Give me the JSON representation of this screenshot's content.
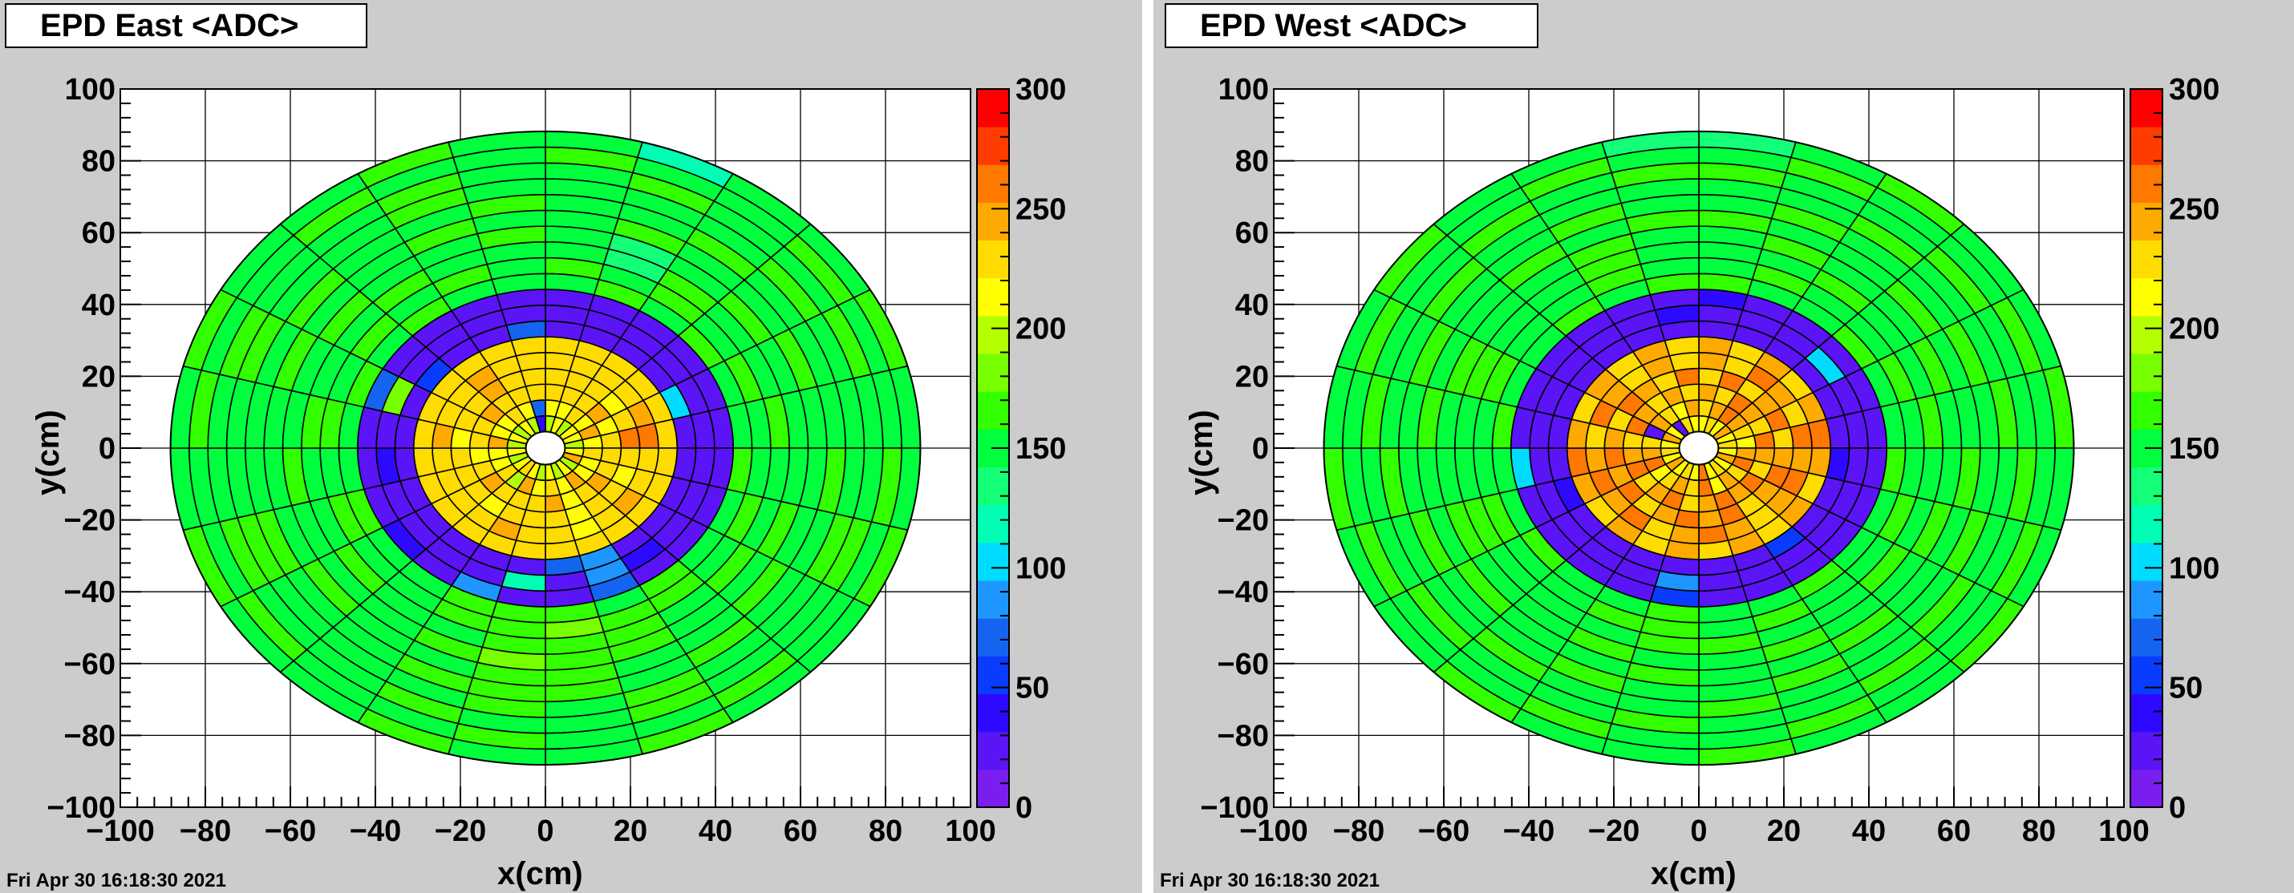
{
  "timestamp": "Fri Apr 30 16:18:30 2021",
  "colors": {
    "palette": [
      "#7a1ef0",
      "#5a14f5",
      "#2d0aff",
      "#0a3cff",
      "#1464f0",
      "#1e96ff",
      "#00dcff",
      "#00ffb4",
      "#14ff78",
      "#00ff3c",
      "#32ff00",
      "#78ff00",
      "#b4ff00",
      "#ffff00",
      "#ffdc00",
      "#ffaa00",
      "#ff7800",
      "#ff3c00",
      "#ff0000"
    ]
  },
  "chart_data": [
    {
      "type": "heatmap",
      "title": "EPD East <ADC>",
      "xlabel": "x(cm)",
      "ylabel": "y(cm)",
      "xlim": [
        -100,
        100
      ],
      "ylim": [
        -100,
        100
      ],
      "x_ticks": [
        "−100",
        "−80",
        "−60",
        "−40",
        "−20",
        "0",
        "20",
        "40",
        "60",
        "80",
        "100"
      ],
      "y_ticks": [
        "100",
        "80",
        "60",
        "40",
        "20",
        "0",
        "−20",
        "−40",
        "−60",
        "−80",
        "−100"
      ],
      "zlim": [
        0,
        300
      ],
      "z_ticks": [
        "300",
        "250",
        "200",
        "150",
        "100",
        "50",
        "0"
      ],
      "grid": true,
      "ring_edges_cm": [
        4.6,
        9.0,
        13.4,
        17.8,
        22.2,
        26.6,
        31.0,
        35.4,
        39.8,
        44.2,
        48.6,
        53.0,
        57.4,
        61.8,
        66.2,
        70.6,
        75.0,
        79.4,
        83.8,
        88.2
      ],
      "sectors": 24,
      "sector_note": "sector 0 starts at +y axis going clockwise; 24 sectors of 15 degrees",
      "ring_values": [
        [
          200,
          215,
          200,
          215,
          215,
          200,
          215,
          240,
          200,
          215,
          200,
          215,
          200,
          215,
          230,
          215,
          200,
          215,
          200,
          215,
          200,
          215,
          200,
          40
        ],
        [
          215,
          215,
          225,
          215,
          240,
          215,
          225,
          215,
          215,
          240,
          215,
          225,
          215,
          240,
          200,
          230,
          215,
          215,
          240,
          215,
          215,
          225,
          215,
          70
        ],
        [
          225,
          230,
          225,
          240,
          215,
          225,
          230,
          225,
          240,
          225,
          215,
          240,
          225,
          230,
          225,
          240,
          225,
          215,
          230,
          225,
          240,
          225,
          230,
          225
        ],
        [
          225,
          225,
          230,
          215,
          225,
          255,
          225,
          215,
          230,
          225,
          215,
          225,
          230,
          225,
          215,
          225,
          230,
          225,
          215,
          225,
          230,
          245,
          225,
          225
        ],
        [
          230,
          225,
          230,
          225,
          240,
          255,
          230,
          225,
          240,
          225,
          220,
          230,
          230,
          240,
          225,
          230,
          225,
          230,
          240,
          225,
          230,
          250,
          225,
          230
        ],
        [
          230,
          225,
          230,
          225,
          230,
          230,
          225,
          230,
          230,
          225,
          230,
          230,
          225,
          230,
          230,
          225,
          230,
          230,
          225,
          230,
          230,
          225,
          230,
          230
        ],
        [
          20,
          30,
          25,
          20,
          95,
          25,
          20,
          30,
          25,
          20,
          90,
          70,
          20,
          25,
          30,
          20,
          25,
          30,
          20,
          25,
          60,
          20,
          30,
          70
        ],
        [
          20,
          25,
          30,
          20,
          20,
          25,
          20,
          30,
          25,
          40,
          80,
          20,
          115,
          25,
          20,
          30,
          30,
          40,
          20,
          180,
          20,
          25,
          30,
          20
        ],
        [
          20,
          30,
          20,
          25,
          20,
          25,
          30,
          20,
          25,
          30,
          70,
          20,
          20,
          80,
          20,
          40,
          30,
          20,
          25,
          70,
          20,
          20,
          25,
          20
        ],
        [
          150,
          160,
          155,
          160,
          150,
          155,
          160,
          150,
          155,
          160,
          150,
          165,
          170,
          160,
          155,
          150,
          160,
          155,
          150,
          160,
          155,
          160,
          150,
          155
        ],
        [
          160,
          150,
          165,
          155,
          160,
          150,
          155,
          160,
          150,
          165,
          160,
          175,
          165,
          160,
          150,
          155,
          160,
          150,
          165,
          155,
          160,
          150,
          165,
          155
        ],
        [
          155,
          140,
          160,
          155,
          150,
          160,
          155,
          150,
          160,
          155,
          165,
          170,
          170,
          155,
          150,
          160,
          155,
          150,
          160,
          155,
          150,
          160,
          155,
          150
        ],
        [
          155,
          135,
          150,
          160,
          155,
          150,
          155,
          160,
          150,
          155,
          160,
          170,
          175,
          160,
          155,
          150,
          155,
          160,
          150,
          155,
          160,
          150,
          155,
          160
        ],
        [
          150,
          160,
          155,
          150,
          160,
          155,
          150,
          155,
          160,
          150,
          155,
          165,
          170,
          155,
          150,
          160,
          155,
          150,
          155,
          160,
          150,
          155,
          160,
          155
        ],
        [
          155,
          150,
          160,
          155,
          150,
          155,
          160,
          150,
          155,
          160,
          150,
          160,
          165,
          160,
          155,
          150,
          160,
          155,
          150,
          155,
          160,
          150,
          155,
          160
        ],
        [
          150,
          155,
          150,
          160,
          155,
          150,
          155,
          160,
          150,
          155,
          160,
          155,
          160,
          155,
          150,
          155,
          160,
          150,
          155,
          160,
          150,
          155,
          160,
          150
        ],
        [
          155,
          160,
          150,
          155,
          160,
          150,
          155,
          160,
          150,
          155,
          160,
          150,
          155,
          160,
          150,
          155,
          160,
          150,
          155,
          160,
          150,
          155,
          160,
          150
        ],
        [
          160,
          150,
          155,
          160,
          150,
          155,
          160,
          150,
          155,
          160,
          150,
          155,
          160,
          150,
          155,
          160,
          150,
          155,
          160,
          150,
          155,
          160,
          150,
          155
        ],
        [
          150,
          125,
          155,
          150,
          160,
          155,
          150,
          160,
          155,
          150,
          160,
          155,
          150,
          160,
          155,
          150,
          160,
          155,
          150,
          160,
          155,
          150,
          160,
          150
        ]
      ]
    },
    {
      "type": "heatmap",
      "title": "EPD West <ADC>",
      "xlabel": "x(cm)",
      "ylabel": "y(cm)",
      "xlim": [
        -100,
        100
      ],
      "ylim": [
        -100,
        100
      ],
      "x_ticks": [
        "−100",
        "−80",
        "−60",
        "−40",
        "−20",
        "0",
        "20",
        "40",
        "60",
        "80",
        "100"
      ],
      "y_ticks": [
        "100",
        "80",
        "60",
        "40",
        "20",
        "0",
        "−20",
        "−40",
        "−60",
        "−80",
        "−100"
      ],
      "zlim": [
        0,
        300
      ],
      "z_ticks": [
        "300",
        "250",
        "200",
        "150",
        "100",
        "50",
        "0"
      ],
      "grid": true,
      "ring_edges_cm": [
        4.6,
        9.0,
        13.4,
        17.8,
        22.2,
        26.6,
        31.0,
        35.4,
        39.8,
        44.2,
        48.6,
        53.0,
        57.4,
        61.8,
        66.2,
        70.6,
        75.0,
        79.4,
        83.8,
        88.2
      ],
      "sectors": 24,
      "sector_note": "sector 0 starts at +y axis going clockwise; 24 sectors of 15 degrees",
      "ring_values": [
        [
          215,
          230,
          215,
          240,
          215,
          230,
          215,
          240,
          215,
          230,
          215,
          255,
          215,
          230,
          215,
          240,
          215,
          230,
          215,
          240,
          215,
          20,
          230,
          215
        ],
        [
          230,
          240,
          255,
          240,
          230,
          215,
          240,
          255,
          230,
          240,
          215,
          255,
          230,
          240,
          230,
          215,
          255,
          240,
          230,
          20,
          240,
          230,
          215,
          240
        ],
        [
          240,
          230,
          255,
          240,
          230,
          255,
          240,
          230,
          255,
          240,
          255,
          240,
          230,
          255,
          240,
          230,
          255,
          240,
          230,
          255,
          240,
          230,
          240,
          230
        ],
        [
          230,
          255,
          230,
          240,
          255,
          230,
          240,
          255,
          240,
          230,
          255,
          240,
          255,
          240,
          230,
          255,
          240,
          255,
          240,
          230,
          255,
          240,
          230,
          255
        ],
        [
          240,
          230,
          255,
          240,
          230,
          255,
          240,
          255,
          240,
          230,
          240,
          255,
          240,
          230,
          255,
          240,
          255,
          240,
          230,
          255,
          240,
          230,
          240,
          230
        ],
        [
          240,
          230,
          240,
          230,
          240,
          255,
          240,
          230,
          240,
          230,
          240,
          230,
          240,
          230,
          240,
          230,
          240,
          255,
          240,
          230,
          240,
          230,
          240,
          230
        ],
        [
          20,
          20,
          25,
          20,
          30,
          20,
          40,
          20,
          30,
          50,
          20,
          25,
          20,
          30,
          20,
          25,
          40,
          20,
          30,
          20,
          25,
          20,
          30,
          20
        ],
        [
          30,
          20,
          25,
          95,
          20,
          30,
          20,
          25,
          30,
          20,
          25,
          20,
          80,
          20,
          30,
          25,
          20,
          30,
          20,
          25,
          20,
          30,
          20,
          40
        ],
        [
          40,
          20,
          25,
          20,
          30,
          20,
          25,
          30,
          20,
          25,
          30,
          20,
          60,
          20,
          25,
          30,
          20,
          100,
          20,
          25,
          30,
          20,
          25,
          20
        ],
        [
          160,
          150,
          155,
          160,
          150,
          155,
          160,
          150,
          155,
          160,
          150,
          155,
          160,
          150,
          155,
          160,
          150,
          155,
          160,
          150,
          155,
          160,
          150,
          160
        ],
        [
          155,
          160,
          150,
          155,
          160,
          150,
          155,
          160,
          150,
          155,
          160,
          150,
          165,
          160,
          150,
          155,
          160,
          150,
          155,
          160,
          150,
          155,
          160,
          155
        ],
        [
          150,
          155,
          160,
          150,
          155,
          160,
          150,
          155,
          160,
          150,
          155,
          165,
          160,
          155,
          150,
          155,
          160,
          150,
          155,
          160,
          150,
          155,
          160,
          150
        ],
        [
          155,
          160,
          150,
          155,
          160,
          150,
          155,
          160,
          150,
          155,
          160,
          150,
          155,
          160,
          150,
          155,
          160,
          150,
          155,
          160,
          150,
          155,
          160,
          155
        ],
        [
          160,
          150,
          155,
          160,
          150,
          155,
          160,
          150,
          155,
          160,
          150,
          155,
          160,
          150,
          155,
          160,
          150,
          155,
          160,
          150,
          155,
          160,
          150,
          160
        ],
        [
          150,
          160,
          155,
          150,
          160,
          155,
          150,
          160,
          155,
          150,
          160,
          155,
          150,
          160,
          155,
          150,
          160,
          155,
          150,
          160,
          155,
          150,
          160,
          150
        ],
        [
          155,
          150,
          160,
          155,
          150,
          160,
          155,
          150,
          160,
          155,
          150,
          160,
          155,
          150,
          160,
          155,
          150,
          160,
          155,
          150,
          160,
          155,
          150,
          155
        ],
        [
          160,
          155,
          150,
          160,
          155,
          150,
          160,
          155,
          150,
          160,
          155,
          150,
          160,
          155,
          150,
          160,
          155,
          150,
          160,
          155,
          150,
          160,
          155,
          160
        ],
        [
          150,
          160,
          155,
          150,
          160,
          155,
          150,
          160,
          155,
          150,
          160,
          155,
          150,
          160,
          155,
          150,
          160,
          155,
          150,
          160,
          155,
          150,
          160,
          150
        ],
        [
          130,
          155,
          160,
          150,
          155,
          160,
          150,
          155,
          160,
          150,
          155,
          160,
          150,
          155,
          160,
          150,
          155,
          160,
          150,
          155,
          160,
          150,
          155,
          140
        ]
      ]
    }
  ]
}
